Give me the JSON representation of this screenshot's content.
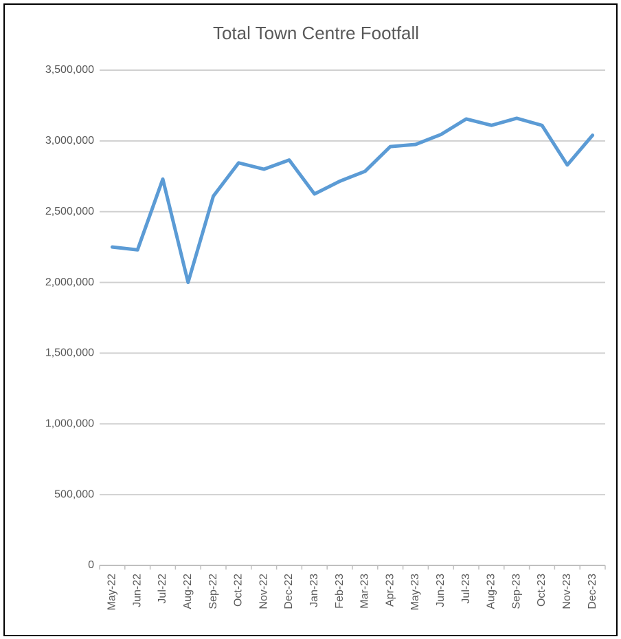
{
  "chart_data": {
    "type": "line",
    "title": "Total Town Centre Footfall",
    "categories": [
      "May-22",
      "Jun-22",
      "Jul-22",
      "Aug-22",
      "Sep-22",
      "Oct-22",
      "Nov-22",
      "Dec-22",
      "Jan-23",
      "Feb-23",
      "Mar-23",
      "Apr-23",
      "May-23",
      "Jun-23",
      "Jul-23",
      "Aug-23",
      "Sep-23",
      "Oct-23",
      "Nov-23",
      "Dec-23"
    ],
    "values": [
      2250000,
      2230000,
      2730000,
      2000000,
      2610000,
      2845000,
      2800000,
      2865000,
      2625000,
      2715000,
      2785000,
      2960000,
      2975000,
      3045000,
      3155000,
      3110000,
      3160000,
      3110000,
      2830000,
      3040000
    ],
    "color": "#5b9bd5",
    "ylim": [
      0,
      3500000
    ],
    "yticks": [
      0,
      {
        "value": 500000,
        "label": "500,000"
      },
      {
        "value": 1000000,
        "label": "1,000,000"
      },
      {
        "value": 1500000,
        "label": "1,500,000"
      },
      {
        "value": 2000000,
        "label": "2,000,000"
      },
      {
        "value": 2500000,
        "label": "2,500,000"
      },
      {
        "value": 3000000,
        "label": "3,000,000"
      },
      {
        "value": 3500000,
        "label": "3,500,000"
      }
    ],
    "grid": true
  }
}
